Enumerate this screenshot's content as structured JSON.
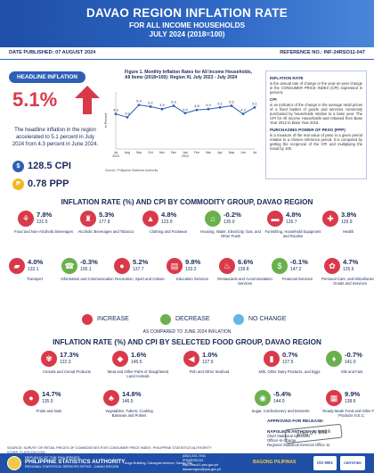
{
  "header": {
    "title": "DAVAO REGION INFLATION RATE",
    "subtitle1": "FOR ALL INCOME HOUSEHOLDS",
    "subtitle2": "JULY 2024 (2018=100)"
  },
  "meta": {
    "date_published": "DATE PUBLISHED: 07 AUGUST 2024",
    "reference_no": "REFERENCE NO.: INF-24RSO11-047"
  },
  "headline": {
    "badge": "HEADLINE INFLATION",
    "rate": "5.1%",
    "text": "The headline inflation in the region accelerated to 5.1 percent in July 2024 from 4.3 percent in June 2024.",
    "cpi": "128.5 CPI",
    "ppp": "0.78 PPP"
  },
  "chart_data": {
    "type": "line",
    "title": "Figure 1. Monthly Inflation Rates for All Income Households, All Items (2018=100): Region XI, July 2023 - July 2024",
    "ylabel": "In Percent",
    "categories": [
      "Jul 2023",
      "Aug",
      "Sep",
      "Oct",
      "Nov",
      "Dec",
      "Jan 2024",
      "Feb",
      "Mar",
      "Apr",
      "May",
      "Jun",
      "Jul"
    ],
    "values": [
      4.3,
      3.9,
      5.4,
      5.2,
      4.9,
      5.3,
      4.4,
      4.8,
      4.9,
      5.1,
      5.3,
      4.3,
      5.1
    ],
    "ylim": [
      0,
      7
    ],
    "source": "Source: Philippine Statistics Authority",
    "color": "#2e5fb5"
  },
  "definitions": [
    {
      "head": "INFLATION RATE",
      "text": "is the annual rate of change or the year-on-year change in the CONSUMER PRICE INDEX (CPI) expressed in percent."
    },
    {
      "head": "CPI",
      "text": "is an indicator of the change in the average retail prices of a fixed basket of goods and services commonly purchased by households relative to a base year. The CPI for All Income Households was rebased from Base Year 2012 to Base Year 2018."
    },
    {
      "head": "PURCHASING POWER OF PESO (PPP)",
      "text": "is a measure of the real value of peso in a given period relative to a chosen reference period. It is computed by getting the reciprocal of the CPI and multiplying the result by 100."
    }
  ],
  "commodity_title": "INFLATION RATE (%) AND CPI BY COMMODITY GROUP, DAVAO REGION",
  "commodity": [
    {
      "rate": "7.8%",
      "cpi": "131.5",
      "label": "Food and Non-Alcoholic Beverages",
      "dir": "up",
      "icon": "food-icon",
      "glyph": "⚘"
    },
    {
      "rate": "5.3%",
      "cpi": "177.8",
      "label": "Alcoholic Beverages and Tobacco",
      "dir": "up",
      "icon": "bottle-icon",
      "glyph": "♜"
    },
    {
      "rate": "4.8%",
      "cpi": "123.9",
      "label": "Clothing and Footwear",
      "dir": "up",
      "icon": "shirt-icon",
      "glyph": "▲"
    },
    {
      "rate": "-0.2%",
      "cpi": "135.0",
      "label": "Housing, Water, Electricity, Gas, and Other Fuels",
      "dir": "dn",
      "icon": "house-icon",
      "glyph": "⌂"
    },
    {
      "rate": "4.8%",
      "cpi": "126.7",
      "label": "Furnishing, Household Equipment and Routine",
      "dir": "up",
      "icon": "sofa-icon",
      "glyph": "▬"
    },
    {
      "rate": "3.8%",
      "cpi": "129.9",
      "label": "Health",
      "dir": "up",
      "icon": "health-icon",
      "glyph": "✚"
    },
    {
      "rate": "4.0%",
      "cpi": "132.1",
      "label": "Transport",
      "dir": "up",
      "icon": "car-icon",
      "glyph": "▰"
    },
    {
      "rate": "-0.3%",
      "cpi": "105.1",
      "label": "Information and Communication",
      "dir": "dn",
      "icon": "phone-icon",
      "glyph": "☎"
    },
    {
      "rate": "5.2%",
      "cpi": "137.7",
      "label": "Recreation, Sport and Culture",
      "dir": "up",
      "icon": "sport-icon",
      "glyph": "●"
    },
    {
      "rate": "9.8%",
      "cpi": "133.2",
      "label": "Education Services",
      "dir": "up",
      "icon": "book-icon",
      "glyph": "▤"
    },
    {
      "rate": "6.6%",
      "cpi": "139.8",
      "label": "Restaurants and Accommodation Services",
      "dir": "up",
      "icon": "restaurant-icon",
      "glyph": "♨"
    },
    {
      "rate": "-0.1%",
      "cpi": "147.2",
      "label": "Financial Services",
      "dir": "dn",
      "icon": "money-icon",
      "glyph": "$"
    },
    {
      "rate": "4.7%",
      "cpi": "125.6",
      "label": "Personal Care, and Miscellaneous Goods and Services",
      "dir": "up",
      "icon": "care-icon",
      "glyph": "✿"
    }
  ],
  "legend": {
    "increase": "INCREASE",
    "decrease": "DECREASE",
    "no_change": "NO CHANGE",
    "increase_color": "#d93a4a",
    "decrease_color": "#6ab04c",
    "no_change_color": "#63b7e6",
    "as_compared": "AS COMPARED TO JUNE 2024 INFLATION"
  },
  "food_title": "INFLATION RATE (%) AND CPI BY SELECTED FOOD GROUP, DAVAO REGION",
  "food": [
    {
      "rate": "17.3%",
      "cpi": "122.3",
      "label": "Cereals and Cereal Products",
      "dir": "up",
      "icon": "grain-icon",
      "glyph": "✾"
    },
    {
      "rate": "1.6%",
      "cpi": "145.5",
      "label": "Meat and Other Parts of Slaughtered Land Animals",
      "dir": "up",
      "icon": "meat-icon",
      "glyph": "◆"
    },
    {
      "rate": "1.0%",
      "cpi": "127.5",
      "label": "Fish and Other Seafood",
      "dir": "up",
      "icon": "fish-icon",
      "glyph": "◀"
    },
    {
      "rate": "0.7%",
      "cpi": "127.5",
      "label": "Milk, Other Dairy Products, and Eggs",
      "dir": "up",
      "icon": "milk-icon",
      "glyph": "▮"
    },
    {
      "rate": "-0.7%",
      "cpi": "141.0",
      "label": "Oils and Fats",
      "dir": "dn",
      "icon": "oil-icon",
      "glyph": "♦"
    },
    {
      "rate": "14.7%",
      "cpi": "135.0",
      "label": "Fruits and Nuts",
      "dir": "up",
      "icon": "fruit-icon",
      "glyph": "●"
    },
    {
      "rate": "14.8%",
      "cpi": "146.5",
      "label": "Vegetables, Tubers, Cooking Bananas and Pulses",
      "dir": "up",
      "icon": "vegetable-icon",
      "glyph": "♣"
    },
    {
      "rate": "-5.4%",
      "cpi": "144.0",
      "label": "Sugar, Confectionery and Desserts",
      "dir": "dn",
      "icon": "candy-icon",
      "glyph": "◉"
    },
    {
      "rate": "9.9%",
      "cpi": "138.6",
      "label": "Ready-Made Food and Other Food Products N.E.C.",
      "dir": "up",
      "icon": "meal-icon",
      "glyph": "▦"
    }
  ],
  "approval": {
    "label": "APPROVED FOR RELEASE:",
    "name": "NAPOLEON ANTHONY B. MAS",
    "position1": "Chief Statistical Specialist",
    "position2": "Officer-In-Charge",
    "position3": "Regional Statistical Services Office 11",
    "stamp": "AUG 0 7 2024"
  },
  "sources": "SOURCE: SURVEY OF RETAIL PRICES OF COMMODITIES FOR CONSUMER PRICE INDEX, PHILIPPINE STATISTICS AUTHORITY\nICONS: FLATICON.COM",
  "footer": {
    "org_top": "REPUBLIC OF THE PHILIPPINES",
    "org": "PHILIPPINE STATISTICS AUTHORITY",
    "org_sub": "REGIONAL STATISTICAL SERVICES OFFICE - DAVAO REGION",
    "address": "Ango Building, Cabaguio Avenue, Davao City",
    "phone": "(082) 224-7941",
    "fb": "/PSARSSO11",
    "web": "http://rsso11.psa.gov.ph",
    "email": "davaoregion@psa.gov.ph",
    "bagong": "BAGONG PILIPINAS",
    "iso": "ISO 9001",
    "iso2": "CERTIFIED"
  }
}
